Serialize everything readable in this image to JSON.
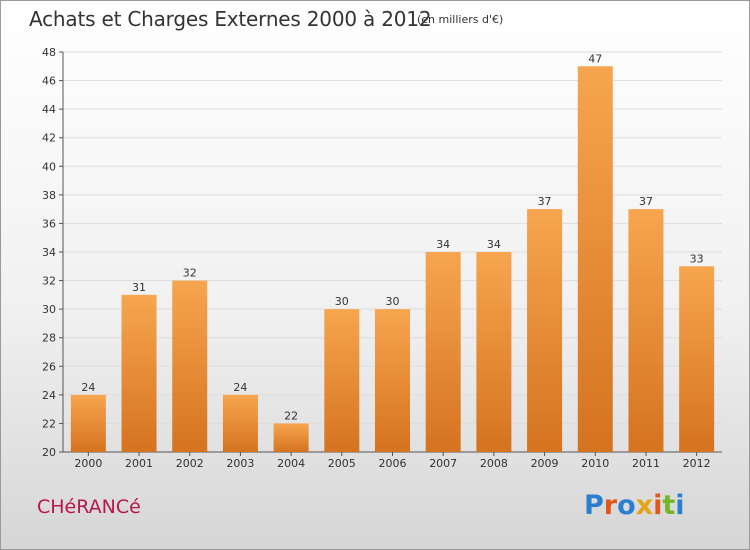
{
  "header": {
    "title": "Achats et Charges Externes 2000 à 2012",
    "unit": "(en milliers d'€)"
  },
  "footer": {
    "commune": "CHéRANCé",
    "logo": "Proxiti"
  },
  "colors": {
    "bar_light": "#f7a54f",
    "bar_dark": "#d5731f",
    "commune": "#b8174c",
    "grid": "#dddddd"
  },
  "chart_data": {
    "type": "bar",
    "title": "Achats et Charges Externes 2000 à 2012",
    "subtitle": "(en milliers d'€)",
    "xlabel": "",
    "ylabel": "",
    "categories": [
      "2000",
      "2001",
      "2002",
      "2003",
      "2004",
      "2005",
      "2006",
      "2007",
      "2008",
      "2009",
      "2010",
      "2011",
      "2012"
    ],
    "values": [
      24,
      31,
      32,
      24,
      22,
      30,
      30,
      34,
      34,
      37,
      47,
      37,
      33
    ],
    "ylim": [
      20,
      48
    ],
    "yticks": [
      20,
      22,
      24,
      26,
      28,
      30,
      32,
      34,
      36,
      38,
      40,
      42,
      44,
      46,
      48
    ],
    "grid": true,
    "legend": "none"
  }
}
